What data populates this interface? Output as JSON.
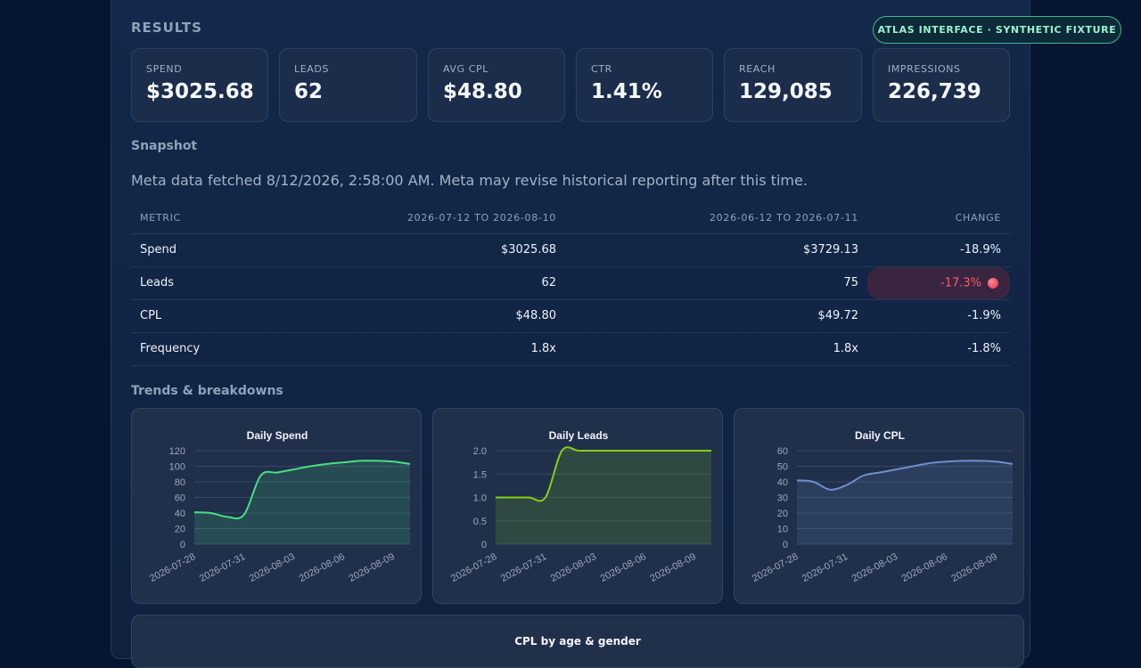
{
  "badge": "ATLAS INTERFACE · SYNTHETIC FIXTURE",
  "results": {
    "title": "RESULTS",
    "kpis": [
      {
        "label": "SPEND",
        "value": "$3025.68"
      },
      {
        "label": "LEADS",
        "value": "62"
      },
      {
        "label": "AVG CPL",
        "value": "$48.80"
      },
      {
        "label": "CTR",
        "value": "1.41%"
      },
      {
        "label": "REACH",
        "value": "129,085"
      },
      {
        "label": "IMPRESSIONS",
        "value": "226,739"
      }
    ]
  },
  "snapshot": {
    "title": "Snapshot",
    "fetched": "Meta data fetched 8/12/2026, 2:58:00 AM. Meta may revise historical reporting after this time.",
    "headers": [
      "METRIC",
      "2026-07-12 TO 2026-08-10",
      "2026-06-12 TO 2026-07-11",
      "CHANGE"
    ],
    "rows": [
      {
        "metric": "Spend",
        "current": "$3025.68",
        "previous": "$3729.13",
        "change": "-18.9%"
      },
      {
        "metric": "Leads",
        "current": "62",
        "previous": "75",
        "change": "-17.3%"
      },
      {
        "metric": "CPL",
        "current": "$48.80",
        "previous": "$49.72",
        "change": "-1.9%"
      },
      {
        "metric": "Frequency",
        "current": "1.8x",
        "previous": "1.8x",
        "change": "-1.8%"
      }
    ]
  },
  "trends": {
    "title": "Trends & breakdowns",
    "bottom_chart_title": "CPL by age & gender"
  },
  "colors": {
    "spend_line": "#4ade80",
    "leads_line": "#84cc16",
    "cpl_line": "#6f8fc9",
    "negative": "#ff5a6e"
  },
  "chart_data": [
    {
      "type": "area",
      "title": "Daily Spend",
      "x": [
        "2026-07-28",
        "2026-07-29",
        "2026-07-30",
        "2026-07-31",
        "2026-08-01",
        "2026-08-02",
        "2026-08-03",
        "2026-08-04",
        "2026-08-05",
        "2026-08-06",
        "2026-08-07",
        "2026-08-08",
        "2026-08-09",
        "2026-08-10"
      ],
      "xticks": [
        "2026-07-28",
        "2026-07-31",
        "2026-08-03",
        "2026-08-06",
        "2026-08-09"
      ],
      "values": [
        41,
        40,
        35,
        38,
        88,
        92,
        96,
        100,
        103,
        105,
        107,
        107,
        106,
        103
      ],
      "ylim": [
        0,
        120
      ],
      "yticks": [
        "0",
        "20",
        "40",
        "60",
        "80",
        "100",
        "120"
      ],
      "grid": true
    },
    {
      "type": "area",
      "title": "Daily Leads",
      "x": [
        "2026-07-28",
        "2026-07-29",
        "2026-07-30",
        "2026-07-31",
        "2026-08-01",
        "2026-08-02",
        "2026-08-03",
        "2026-08-04",
        "2026-08-05",
        "2026-08-06",
        "2026-08-07",
        "2026-08-08",
        "2026-08-09",
        "2026-08-10"
      ],
      "xticks": [
        "2026-07-28",
        "2026-07-31",
        "2026-08-03",
        "2026-08-06",
        "2026-08-09"
      ],
      "values": [
        1,
        1,
        1,
        1,
        2,
        2,
        2,
        2,
        2,
        2,
        2,
        2,
        2,
        2
      ],
      "ylim": [
        0,
        2
      ],
      "yticks": [
        "0",
        "0.5",
        "1.0",
        "1.5",
        "2.0"
      ],
      "grid": true
    },
    {
      "type": "area",
      "title": "Daily CPL",
      "x": [
        "2026-07-28",
        "2026-07-29",
        "2026-07-30",
        "2026-07-31",
        "2026-08-01",
        "2026-08-02",
        "2026-08-03",
        "2026-08-04",
        "2026-08-05",
        "2026-08-06",
        "2026-08-07",
        "2026-08-08",
        "2026-08-09",
        "2026-08-10"
      ],
      "xticks": [
        "2026-07-28",
        "2026-07-31",
        "2026-08-03",
        "2026-08-06",
        "2026-08-09"
      ],
      "values": [
        41,
        40,
        35,
        38,
        44,
        46,
        48,
        50,
        52,
        53,
        53.5,
        53.5,
        53,
        51.5
      ],
      "ylim": [
        0,
        60
      ],
      "yticks": [
        "0",
        "10",
        "20",
        "30",
        "40",
        "50",
        "60"
      ],
      "grid": true
    }
  ]
}
